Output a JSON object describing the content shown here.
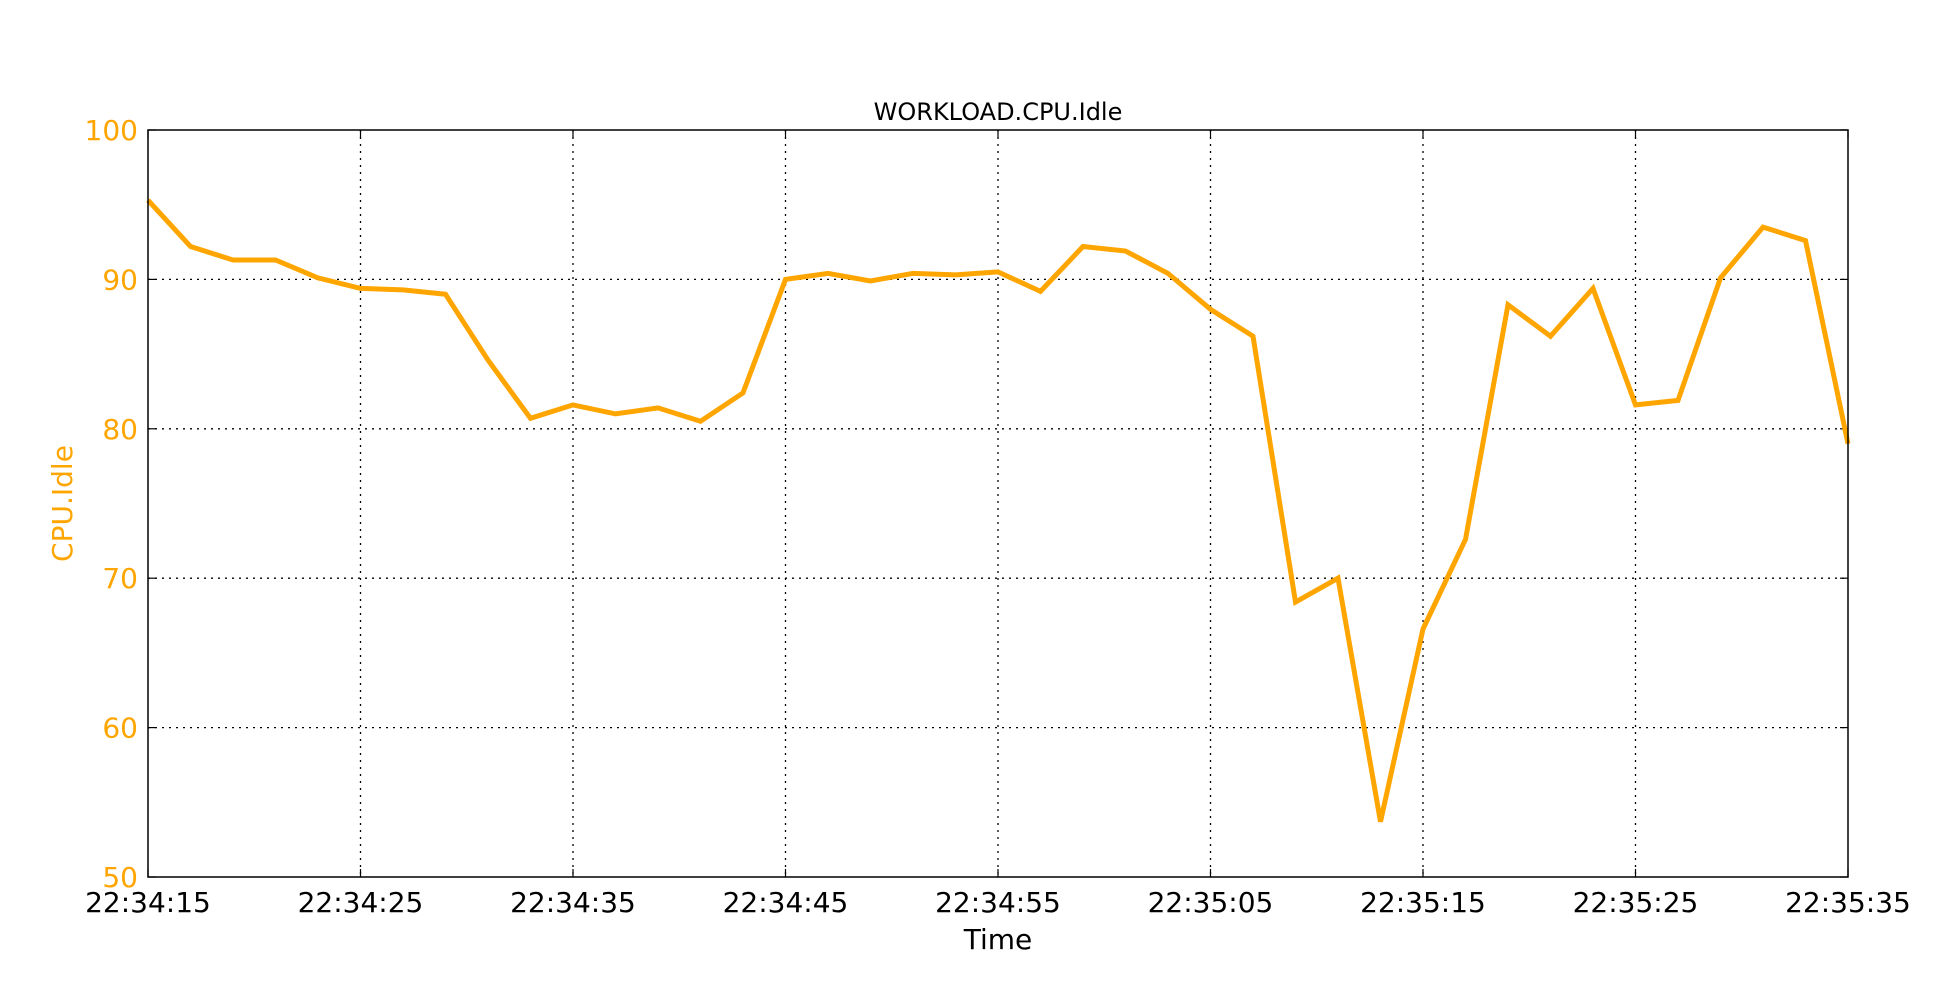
{
  "chart_data": {
    "type": "line",
    "title": "WORKLOAD.CPU.Idle",
    "xlabel": "Time",
    "ylabel": "CPU.Idle",
    "xlim": [
      "22:34:15",
      "22:35:35"
    ],
    "ylim": [
      50,
      100
    ],
    "x_tick_labels": [
      "22:34:15",
      "22:34:25",
      "22:34:35",
      "22:34:45",
      "22:34:55",
      "22:35:05",
      "22:35:15",
      "22:35:25",
      "22:35:35"
    ],
    "y_ticks": [
      50,
      60,
      70,
      80,
      90,
      100
    ],
    "grid": true,
    "legend": "none",
    "series": [
      {
        "color": "#ffa500",
        "x": [
          "22:34:15",
          "22:34:17",
          "22:34:19",
          "22:34:21",
          "22:34:23",
          "22:34:25",
          "22:34:27",
          "22:34:29",
          "22:34:31",
          "22:34:33",
          "22:34:35",
          "22:34:37",
          "22:34:39",
          "22:34:41",
          "22:34:43",
          "22:34:45",
          "22:34:47",
          "22:34:49",
          "22:34:51",
          "22:34:53",
          "22:34:55",
          "22:34:57",
          "22:34:59",
          "22:35:01",
          "22:35:03",
          "22:35:05",
          "22:35:07",
          "22:35:09",
          "22:35:11",
          "22:35:13",
          "22:35:15",
          "22:35:17",
          "22:35:19",
          "22:35:21",
          "22:35:23",
          "22:35:25",
          "22:35:27",
          "22:35:29",
          "22:35:31",
          "22:35:33",
          "22:35:35"
        ],
        "values": [
          95.3,
          92.2,
          91.3,
          91.3,
          90.1,
          89.4,
          89.3,
          89.0,
          84.6,
          80.7,
          81.6,
          81.0,
          81.4,
          80.5,
          82.4,
          90.0,
          90.4,
          89.9,
          90.4,
          90.3,
          90.5,
          89.2,
          92.2,
          91.9,
          90.4,
          88.0,
          86.2,
          68.4,
          70.0,
          53.7,
          66.6,
          72.6,
          88.3,
          86.2,
          89.4,
          81.6,
          81.9,
          90.1,
          93.5,
          92.6,
          79.0
        ]
      }
    ]
  }
}
